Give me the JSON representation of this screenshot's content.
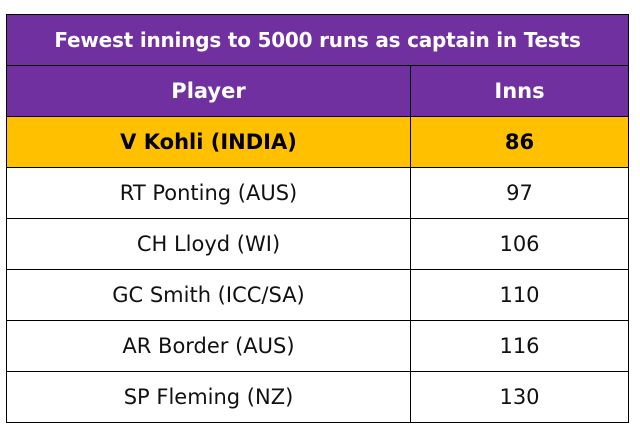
{
  "title": "Fewest innings to 5000 runs as captain in Tests",
  "columns": [
    "Player",
    "Inns"
  ],
  "rows": [
    {
      "player": "V Kohli (INDIA)",
      "inns": "86",
      "highlight": true
    },
    {
      "player": "RT Ponting (AUS)",
      "inns": "97"
    },
    {
      "player": "CH Lloyd (WI)",
      "inns": "106"
    },
    {
      "player": "GC Smith (ICC/SA)",
      "inns": "110"
    },
    {
      "player": "AR Border (AUS)",
      "inns": "116"
    },
    {
      "player": "SP Fleming (NZ)",
      "inns": "130"
    }
  ],
  "colors": {
    "header_bg": "#7030a0",
    "header_text": "#ffffff",
    "highlight_bg": "#ffc000"
  }
}
